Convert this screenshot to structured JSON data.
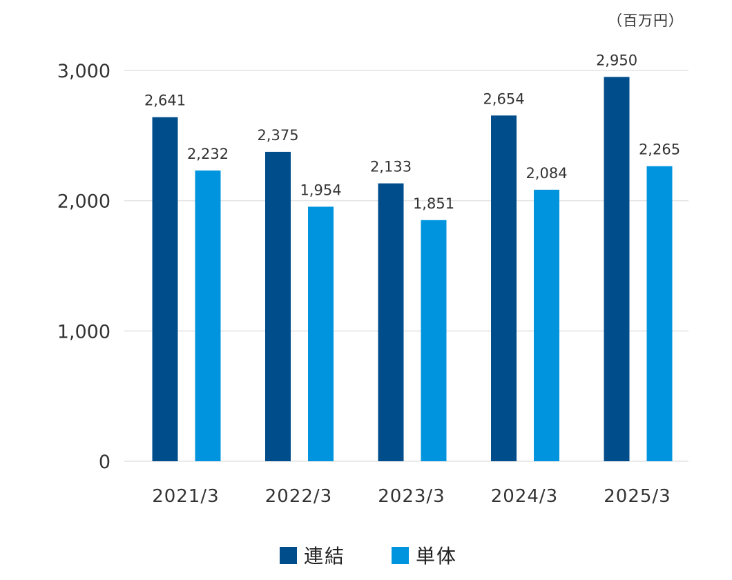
{
  "unit": "（百万円）",
  "colors": {
    "consolidated": "#004d8c",
    "standalone": "#0094de",
    "grid": "#e3e3e3",
    "text": "#333333"
  },
  "chart_data": {
    "type": "bar",
    "title": "",
    "xlabel": "",
    "ylabel": "",
    "ylim": [
      0,
      3000
    ],
    "yticks": [
      0,
      1000,
      2000,
      3000
    ],
    "ytick_labels": [
      "0",
      "1,000",
      "2,000",
      "3,000"
    ],
    "grid": true,
    "legend_position": "bottom",
    "categories": [
      "2021/3",
      "2022/3",
      "2023/3",
      "2024/3",
      "2025/3"
    ],
    "series": [
      {
        "name": "連結",
        "values": [
          2641,
          2375,
          2133,
          2654,
          2950
        ],
        "labels": [
          "2,641",
          "2,375",
          "2,133",
          "2,654",
          "2,950"
        ]
      },
      {
        "name": "単体",
        "values": [
          2232,
          1954,
          1851,
          2084,
          2265
        ],
        "labels": [
          "2,232",
          "1,954",
          "1,851",
          "2,084",
          "2,265"
        ]
      }
    ]
  }
}
